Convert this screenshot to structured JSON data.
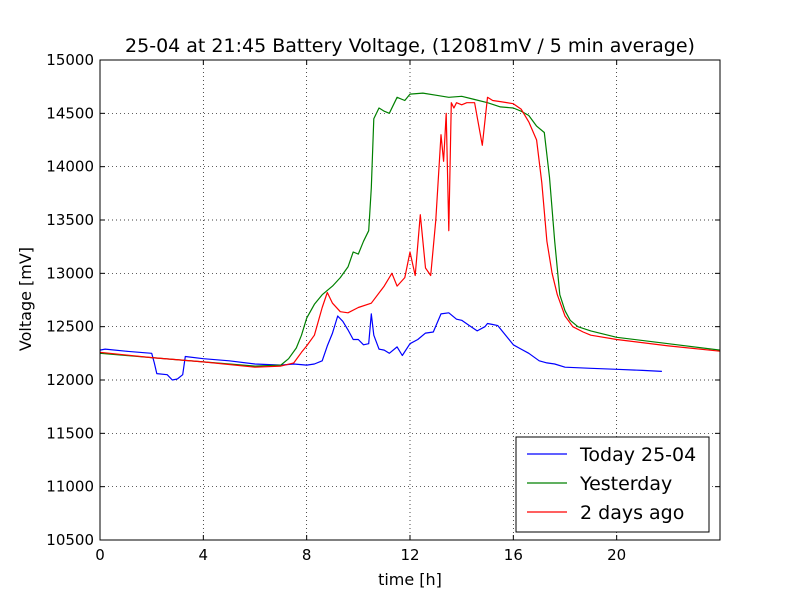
{
  "chart_data": {
    "type": "line",
    "title": "25-04 at 21:45 Battery Voltage, (12081mV / 5 min average)",
    "xlabel": "time [h]",
    "ylabel": "Voltage [mV]",
    "xlim": [
      0,
      24
    ],
    "ylim": [
      10500,
      15000
    ],
    "xticks": [
      0,
      4,
      8,
      12,
      16,
      20
    ],
    "xtick_labels": [
      "0",
      "4",
      "8",
      "12",
      "16",
      "20"
    ],
    "yticks": [
      10500,
      11000,
      11500,
      12000,
      12500,
      13000,
      13500,
      14000,
      14500,
      15000
    ],
    "ytick_labels": [
      "10500",
      "11000",
      "11500",
      "12000",
      "12500",
      "13000",
      "13500",
      "14000",
      "14500",
      "15000"
    ],
    "grid": true,
    "legend_position": "lower-right",
    "series": [
      {
        "name": "Today 25-04",
        "color": "#0000ff",
        "x": [
          0,
          0.2,
          1,
          2,
          2.1,
          2.2,
          2.6,
          2.8,
          3.0,
          3.2,
          3.3,
          4,
          5,
          6,
          7,
          7.5,
          8,
          8.3,
          8.6,
          8.8,
          9.0,
          9.2,
          9.4,
          9.6,
          9.8,
          10.0,
          10.2,
          10.4,
          10.5,
          10.6,
          10.8,
          11.0,
          11.2,
          11.5,
          11.7,
          12.0,
          12.3,
          12.6,
          12.9,
          13.2,
          13.5,
          13.8,
          14.0,
          14.3,
          14.6,
          14.9,
          15.0,
          15.2,
          15.4,
          15.7,
          16.0,
          16.3,
          16.6,
          17.0,
          17.3,
          17.6,
          18,
          19,
          20,
          21,
          21.75
        ],
        "y": [
          12280,
          12290,
          12270,
          12250,
          12160,
          12060,
          12050,
          12000,
          12010,
          12050,
          12220,
          12200,
          12180,
          12150,
          12140,
          12150,
          12140,
          12150,
          12180,
          12320,
          12440,
          12600,
          12550,
          12470,
          12380,
          12380,
          12330,
          12340,
          12620,
          12420,
          12290,
          12280,
          12250,
          12310,
          12230,
          12340,
          12380,
          12440,
          12450,
          12620,
          12630,
          12570,
          12560,
          12510,
          12460,
          12500,
          12530,
          12520,
          12510,
          12420,
          12330,
          12290,
          12250,
          12180,
          12160,
          12150,
          12120,
          12110,
          12100,
          12090,
          12081
        ]
      },
      {
        "name": "Yesterday",
        "color": "#008000",
        "x": [
          0,
          2,
          4,
          6,
          7,
          7.3,
          7.6,
          7.8,
          8.0,
          8.3,
          8.6,
          9.0,
          9.3,
          9.6,
          9.8,
          10.0,
          10.2,
          10.4,
          10.5,
          10.6,
          10.8,
          11.0,
          11.2,
          11.5,
          11.8,
          12.0,
          12.5,
          13.0,
          13.5,
          14.0,
          14.5,
          15.0,
          15.5,
          16.0,
          16.3,
          16.6,
          16.9,
          17.2,
          17.4,
          17.6,
          17.8,
          18.0,
          18.2,
          18.5,
          19.0,
          20.0,
          22.0,
          24.0
        ],
        "y": [
          12250,
          12210,
          12170,
          12130,
          12140,
          12200,
          12300,
          12420,
          12580,
          12710,
          12800,
          12880,
          12960,
          13060,
          13200,
          13180,
          13300,
          13400,
          13800,
          14450,
          14550,
          14520,
          14500,
          14650,
          14620,
          14680,
          14690,
          14670,
          14650,
          14660,
          14630,
          14600,
          14560,
          14550,
          14520,
          14480,
          14380,
          14320,
          13900,
          13300,
          12800,
          12650,
          12560,
          12500,
          12460,
          12400,
          12340,
          12280
        ]
      },
      {
        "name": "2 days ago",
        "color": "#ff0000",
        "x": [
          0,
          2,
          4,
          6,
          7,
          7.5,
          7.8,
          8.0,
          8.3,
          8.6,
          8.8,
          9.0,
          9.3,
          9.6,
          10,
          10.5,
          11.0,
          11.3,
          11.5,
          11.8,
          12.0,
          12.2,
          12.4,
          12.6,
          12.8,
          13.0,
          13.2,
          13.3,
          13.4,
          13.5,
          13.6,
          13.7,
          13.8,
          14.0,
          14.2,
          14.5,
          14.8,
          15.0,
          15.2,
          15.5,
          16.0,
          16.3,
          16.6,
          16.9,
          17.1,
          17.3,
          17.5,
          17.7,
          18.0,
          18.3,
          18.7,
          19.0,
          20.0,
          22.0,
          24.0
        ],
        "y": [
          12260,
          12210,
          12170,
          12120,
          12130,
          12160,
          12260,
          12320,
          12420,
          12680,
          12820,
          12720,
          12640,
          12630,
          12680,
          12720,
          12880,
          13000,
          12880,
          12960,
          13200,
          12980,
          13550,
          13050,
          12980,
          13500,
          14300,
          14050,
          14500,
          13400,
          14600,
          14550,
          14600,
          14580,
          14600,
          14600,
          14200,
          14650,
          14620,
          14610,
          14590,
          14540,
          14420,
          14250,
          13850,
          13300,
          13000,
          12800,
          12600,
          12500,
          12450,
          12420,
          12380,
          12320,
          12270
        ]
      }
    ]
  }
}
